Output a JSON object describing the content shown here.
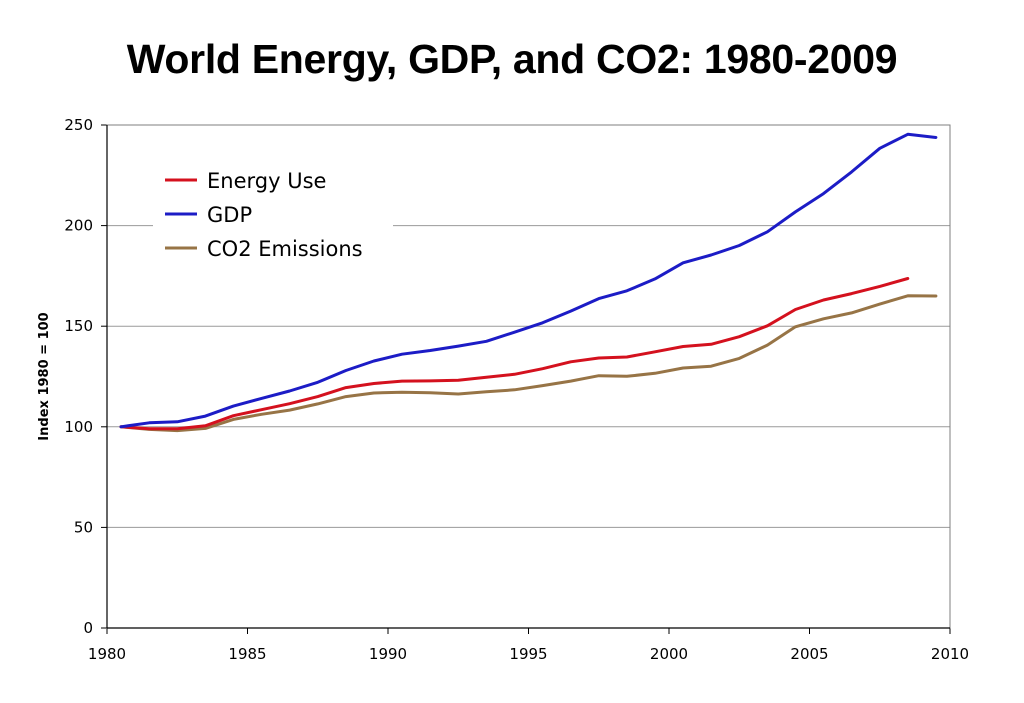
{
  "chart_data": {
    "type": "line",
    "title": "World Energy, GDP, and CO2: 1980-2009",
    "xlabel": "",
    "ylabel": "Index 1980 = 100",
    "xlim": [
      1980,
      2010
    ],
    "ylim": [
      0,
      250
    ],
    "x_ticks": [
      1980,
      1985,
      1990,
      1995,
      2000,
      2005,
      2010
    ],
    "y_ticks": [
      0,
      50,
      100,
      150,
      200,
      250
    ],
    "grid": "horizontal",
    "legend_position": "top-left",
    "series": [
      {
        "name": "Energy Use",
        "color": "#d4111e",
        "x": [
          1980,
          1981,
          1982,
          1983,
          1984,
          1985,
          1986,
          1987,
          1988,
          1989,
          1990,
          1991,
          1992,
          1993,
          1994,
          1995,
          1996,
          1997,
          1998,
          1999,
          2000,
          2001,
          2002,
          2003,
          2004,
          2005,
          2006,
          2007,
          2008
        ],
        "values": [
          100,
          99,
          99,
          100.5,
          105.5,
          108.5,
          111.5,
          115,
          119.5,
          121.5,
          122.7,
          122.8,
          123.1,
          124.6,
          126.1,
          128.9,
          132.3,
          134.2,
          134.7,
          137.3,
          139.9,
          141,
          144.8,
          150.2,
          158.3,
          163,
          166.2,
          169.8,
          173.7
        ]
      },
      {
        "name": "GDP",
        "color": "#1c1cc6",
        "x": [
          1980,
          1981,
          1982,
          1983,
          1984,
          1985,
          1986,
          1987,
          1988,
          1989,
          1990,
          1991,
          1992,
          1993,
          1994,
          1995,
          1996,
          1997,
          1998,
          1999,
          2000,
          2001,
          2002,
          2003,
          2004,
          2005,
          2006,
          2007,
          2008,
          2009
        ],
        "values": [
          100,
          102,
          102.5,
          105.3,
          110.3,
          114.1,
          117.8,
          122.1,
          128,
          132.7,
          136.1,
          137.9,
          140.1,
          142.5,
          147,
          151.7,
          157.5,
          163.7,
          167.6,
          173.5,
          181.5,
          185.4,
          190.1,
          196.9,
          206.8,
          215.9,
          226.7,
          238.4,
          245.4,
          243.8
        ]
      },
      {
        "name": "CO2 Emissions",
        "color": "#977446",
        "x": [
          1980,
          1981,
          1982,
          1983,
          1984,
          1985,
          1986,
          1987,
          1988,
          1989,
          1990,
          1991,
          1992,
          1993,
          1994,
          1995,
          1996,
          1997,
          1998,
          1999,
          2000,
          2001,
          2002,
          2003,
          2004,
          2005,
          2006,
          2007,
          2008,
          2009
        ],
        "values": [
          100,
          98.7,
          98.1,
          99.2,
          103.7,
          106.2,
          108.3,
          111.4,
          115,
          116.8,
          117.2,
          116.9,
          116.3,
          117.4,
          118.4,
          120.5,
          122.7,
          125.4,
          125.1,
          126.6,
          129.2,
          130.1,
          134,
          140.6,
          149.7,
          153.7,
          156.6,
          161,
          165.1,
          165
        ]
      }
    ]
  }
}
